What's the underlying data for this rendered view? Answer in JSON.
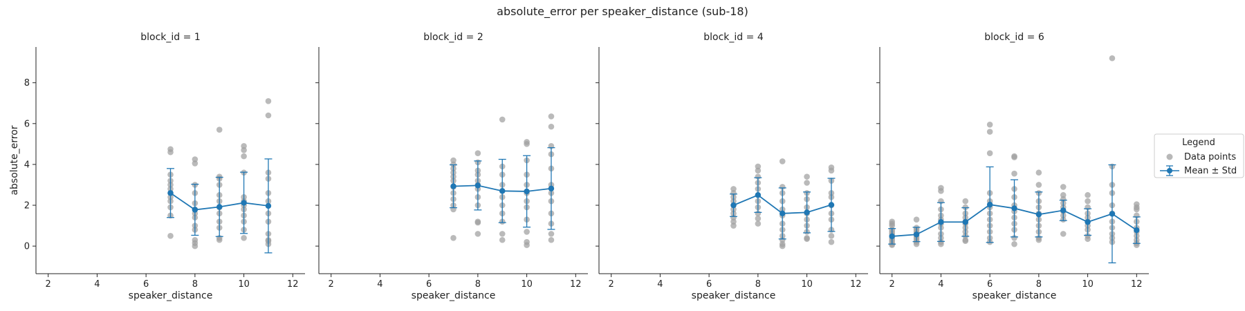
{
  "chart_data": {
    "type": "scatter",
    "title": "absolute_error per speaker_distance (sub-18)",
    "xlabel": "speaker_distance",
    "ylabel": "absolute_error",
    "xlim": [
      1.5,
      12.5
    ],
    "ylim": [
      -1.35,
      9.75
    ],
    "xticks": [
      2,
      4,
      6,
      8,
      10,
      12
    ],
    "yticks": [
      0,
      2,
      4,
      6,
      8
    ],
    "colors": {
      "points": "#a0a0a0",
      "mean": "#1f77b4"
    },
    "legend": {
      "title": "Legend",
      "placement": "right",
      "entries": [
        "Data points",
        "Mean ± Std"
      ]
    },
    "panels": [
      {
        "title": "block_id = 1",
        "points": [
          [
            7,
            4.75
          ],
          [
            7,
            4.6
          ],
          [
            7,
            3.5
          ],
          [
            7,
            3.2
          ],
          [
            7,
            3.0
          ],
          [
            7,
            2.8
          ],
          [
            7,
            2.6
          ],
          [
            7,
            2.4
          ],
          [
            7,
            2.2
          ],
          [
            7,
            1.9
          ],
          [
            7,
            1.5
          ],
          [
            7,
            0.5
          ],
          [
            8,
            4.25
          ],
          [
            8,
            4.05
          ],
          [
            8,
            3.0
          ],
          [
            8,
            2.6
          ],
          [
            8,
            2.1
          ],
          [
            8,
            1.8
          ],
          [
            8,
            1.6
          ],
          [
            8,
            1.4
          ],
          [
            8,
            1.0
          ],
          [
            8,
            0.8
          ],
          [
            8,
            0.3
          ],
          [
            8,
            0.15
          ],
          [
            8,
            0.0
          ],
          [
            9,
            5.7
          ],
          [
            9,
            3.4
          ],
          [
            9,
            3.3
          ],
          [
            9,
            3.0
          ],
          [
            9,
            2.5
          ],
          [
            9,
            2.2
          ],
          [
            9,
            1.9
          ],
          [
            9,
            1.6
          ],
          [
            9,
            1.2
          ],
          [
            9,
            0.9
          ],
          [
            9,
            0.4
          ],
          [
            9,
            0.3
          ],
          [
            10,
            4.9
          ],
          [
            10,
            4.7
          ],
          [
            10,
            4.4
          ],
          [
            10,
            3.6
          ],
          [
            10,
            2.4
          ],
          [
            10,
            2.2
          ],
          [
            10,
            2.0
          ],
          [
            10,
            1.8
          ],
          [
            10,
            1.5
          ],
          [
            10,
            1.2
          ],
          [
            10,
            0.8
          ],
          [
            10,
            0.4
          ],
          [
            11,
            7.1
          ],
          [
            11,
            6.4
          ],
          [
            11,
            3.6
          ],
          [
            11,
            3.3
          ],
          [
            11,
            2.6
          ],
          [
            11,
            2.2
          ],
          [
            11,
            1.6
          ],
          [
            11,
            1.2
          ],
          [
            11,
            0.6
          ],
          [
            11,
            0.3
          ],
          [
            11,
            0.25
          ],
          [
            11,
            0.1
          ]
        ],
        "means": [
          [
            7,
            2.6
          ],
          [
            8,
            1.78
          ],
          [
            9,
            1.92
          ],
          [
            10,
            2.12
          ],
          [
            11,
            1.97
          ]
        ],
        "stds": [
          1.2,
          1.25,
          1.45,
          1.5,
          2.3
        ]
      },
      {
        "title": "block_id = 2",
        "points": [
          [
            7,
            4.2
          ],
          [
            7,
            4.0
          ],
          [
            7,
            3.8
          ],
          [
            7,
            3.6
          ],
          [
            7,
            3.4
          ],
          [
            7,
            3.2
          ],
          [
            7,
            2.9
          ],
          [
            7,
            2.6
          ],
          [
            7,
            2.3
          ],
          [
            7,
            2.0
          ],
          [
            7,
            1.8
          ],
          [
            7,
            0.4
          ],
          [
            8,
            4.55
          ],
          [
            8,
            4.1
          ],
          [
            8,
            3.7
          ],
          [
            8,
            3.5
          ],
          [
            8,
            3.2
          ],
          [
            8,
            3.0
          ],
          [
            8,
            2.8
          ],
          [
            8,
            2.4
          ],
          [
            8,
            2.0
          ],
          [
            8,
            1.2
          ],
          [
            8,
            1.15
          ],
          [
            8,
            0.6
          ],
          [
            9,
            6.2
          ],
          [
            9,
            3.9
          ],
          [
            9,
            3.5
          ],
          [
            9,
            3.0
          ],
          [
            9,
            2.7
          ],
          [
            9,
            2.4
          ],
          [
            9,
            2.0
          ],
          [
            9,
            1.6
          ],
          [
            9,
            1.2
          ],
          [
            9,
            0.6
          ],
          [
            9,
            0.3
          ],
          [
            10,
            5.1
          ],
          [
            10,
            5.0
          ],
          [
            10,
            4.2
          ],
          [
            10,
            3.5
          ],
          [
            10,
            3.0
          ],
          [
            10,
            2.6
          ],
          [
            10,
            2.2
          ],
          [
            10,
            1.9
          ],
          [
            10,
            1.3
          ],
          [
            10,
            0.7
          ],
          [
            10,
            0.2
          ],
          [
            10,
            0.05
          ],
          [
            11,
            6.35
          ],
          [
            11,
            5.85
          ],
          [
            11,
            4.9
          ],
          [
            11,
            4.5
          ],
          [
            11,
            3.8
          ],
          [
            11,
            3.0
          ],
          [
            11,
            2.6
          ],
          [
            11,
            2.2
          ],
          [
            11,
            1.6
          ],
          [
            11,
            1.1
          ],
          [
            11,
            0.6
          ],
          [
            11,
            0.3
          ]
        ],
        "means": [
          [
            7,
            2.93
          ],
          [
            8,
            2.97
          ],
          [
            9,
            2.7
          ],
          [
            10,
            2.68
          ],
          [
            11,
            2.82
          ]
        ],
        "stds": [
          1.05,
          1.2,
          1.55,
          1.75,
          2.0
        ]
      },
      {
        "title": "block_id = 4",
        "points": [
          [
            7,
            2.8
          ],
          [
            7,
            2.6
          ],
          [
            7,
            2.4
          ],
          [
            7,
            2.2
          ],
          [
            7,
            2.0
          ],
          [
            7,
            1.8
          ],
          [
            7,
            1.6
          ],
          [
            7,
            1.4
          ],
          [
            7,
            1.2
          ],
          [
            7,
            1.0
          ],
          [
            8,
            3.9
          ],
          [
            8,
            3.7
          ],
          [
            8,
            3.4
          ],
          [
            8,
            3.1
          ],
          [
            8,
            2.8
          ],
          [
            8,
            2.5
          ],
          [
            8,
            2.2
          ],
          [
            8,
            1.9
          ],
          [
            8,
            1.6
          ],
          [
            8,
            1.35
          ],
          [
            8,
            1.1
          ],
          [
            9,
            4.15
          ],
          [
            9,
            2.9
          ],
          [
            9,
            2.6
          ],
          [
            9,
            2.2
          ],
          [
            9,
            1.8
          ],
          [
            9,
            1.5
          ],
          [
            9,
            1.1
          ],
          [
            9,
            0.8
          ],
          [
            9,
            0.5
          ],
          [
            9,
            0.3
          ],
          [
            9,
            0.1
          ],
          [
            9,
            0.0
          ],
          [
            10,
            3.4
          ],
          [
            10,
            3.1
          ],
          [
            10,
            2.6
          ],
          [
            10,
            2.3
          ],
          [
            10,
            1.9
          ],
          [
            10,
            1.6
          ],
          [
            10,
            1.3
          ],
          [
            10,
            1.0
          ],
          [
            10,
            0.7
          ],
          [
            10,
            0.4
          ],
          [
            10,
            0.35
          ],
          [
            11,
            3.85
          ],
          [
            11,
            3.7
          ],
          [
            11,
            3.2
          ],
          [
            11,
            2.6
          ],
          [
            11,
            2.4
          ],
          [
            11,
            2.0
          ],
          [
            11,
            1.6
          ],
          [
            11,
            1.3
          ],
          [
            11,
            0.8
          ],
          [
            11,
            0.5
          ],
          [
            11,
            0.2
          ]
        ],
        "means": [
          [
            7,
            2.0
          ],
          [
            8,
            2.5
          ],
          [
            9,
            1.6
          ],
          [
            10,
            1.65
          ],
          [
            11,
            2.02
          ]
        ],
        "stds": [
          0.55,
          0.85,
          1.25,
          1.0,
          1.3
        ]
      },
      {
        "title": "block_id = 6",
        "points": [
          [
            2,
            1.2
          ],
          [
            2,
            1.1
          ],
          [
            2,
            1.0
          ],
          [
            2,
            0.8
          ],
          [
            2,
            0.7
          ],
          [
            2,
            0.6
          ],
          [
            2,
            0.5
          ],
          [
            2,
            0.4
          ],
          [
            2,
            0.3
          ],
          [
            2,
            0.2
          ],
          [
            2,
            0.1
          ],
          [
            2,
            0.05
          ],
          [
            3,
            1.3
          ],
          [
            3,
            0.9
          ],
          [
            3,
            0.8
          ],
          [
            3,
            0.7
          ],
          [
            3,
            0.6
          ],
          [
            3,
            0.5
          ],
          [
            3,
            0.4
          ],
          [
            3,
            0.3
          ],
          [
            3,
            0.2
          ],
          [
            3,
            0.1
          ],
          [
            4,
            2.85
          ],
          [
            4,
            2.7
          ],
          [
            4,
            2.2
          ],
          [
            4,
            1.8
          ],
          [
            4,
            1.5
          ],
          [
            4,
            1.3
          ],
          [
            4,
            1.1
          ],
          [
            4,
            0.9
          ],
          [
            4,
            0.6
          ],
          [
            4,
            0.4
          ],
          [
            4,
            0.2
          ],
          [
            4,
            0.1
          ],
          [
            5,
            2.2
          ],
          [
            5,
            1.9
          ],
          [
            5,
            1.6
          ],
          [
            5,
            1.4
          ],
          [
            5,
            1.2
          ],
          [
            5,
            1.1
          ],
          [
            5,
            0.9
          ],
          [
            5,
            0.7
          ],
          [
            5,
            0.5
          ],
          [
            5,
            0.3
          ],
          [
            5,
            0.25
          ],
          [
            6,
            5.95
          ],
          [
            6,
            5.6
          ],
          [
            6,
            4.55
          ],
          [
            6,
            2.6
          ],
          [
            6,
            2.2
          ],
          [
            6,
            1.9
          ],
          [
            6,
            1.6
          ],
          [
            6,
            1.3
          ],
          [
            6,
            1.0
          ],
          [
            6,
            0.7
          ],
          [
            6,
            0.4
          ],
          [
            6,
            0.2
          ],
          [
            7,
            4.4
          ],
          [
            7,
            4.35
          ],
          [
            7,
            3.55
          ],
          [
            7,
            2.8
          ],
          [
            7,
            2.4
          ],
          [
            7,
            2.0
          ],
          [
            7,
            1.7
          ],
          [
            7,
            1.4
          ],
          [
            7,
            1.1
          ],
          [
            7,
            0.8
          ],
          [
            7,
            0.4
          ],
          [
            7,
            0.1
          ],
          [
            8,
            3.6
          ],
          [
            8,
            3.0
          ],
          [
            8,
            2.6
          ],
          [
            8,
            2.2
          ],
          [
            8,
            1.9
          ],
          [
            8,
            1.6
          ],
          [
            8,
            1.3
          ],
          [
            8,
            1.0
          ],
          [
            8,
            0.7
          ],
          [
            8,
            0.4
          ],
          [
            8,
            0.3
          ],
          [
            9,
            2.9
          ],
          [
            9,
            2.5
          ],
          [
            9,
            2.3
          ],
          [
            9,
            2.1
          ],
          [
            9,
            1.9
          ],
          [
            9,
            1.7
          ],
          [
            9,
            1.5
          ],
          [
            9,
            1.3
          ],
          [
            9,
            0.6
          ],
          [
            10,
            2.5
          ],
          [
            10,
            2.2
          ],
          [
            10,
            1.9
          ],
          [
            10,
            1.6
          ],
          [
            10,
            1.4
          ],
          [
            10,
            1.2
          ],
          [
            10,
            1.0
          ],
          [
            10,
            0.8
          ],
          [
            10,
            0.5
          ],
          [
            10,
            0.35
          ],
          [
            11,
            9.2
          ],
          [
            11,
            3.9
          ],
          [
            11,
            3.0
          ],
          [
            11,
            2.6
          ],
          [
            11,
            2.0
          ],
          [
            11,
            1.6
          ],
          [
            11,
            1.2
          ],
          [
            11,
            0.9
          ],
          [
            11,
            0.6
          ],
          [
            11,
            0.4
          ],
          [
            11,
            0.2
          ],
          [
            12,
            2.05
          ],
          [
            12,
            1.9
          ],
          [
            12,
            1.8
          ],
          [
            12,
            1.5
          ],
          [
            12,
            1.2
          ],
          [
            12,
            0.9
          ],
          [
            12,
            0.7
          ],
          [
            12,
            0.5
          ],
          [
            12,
            0.3
          ],
          [
            12,
            0.15
          ],
          [
            12,
            0.05
          ]
        ],
        "means": [
          [
            2,
            0.48
          ],
          [
            3,
            0.57
          ],
          [
            4,
            1.18
          ],
          [
            5,
            1.18
          ],
          [
            6,
            2.03
          ],
          [
            7,
            1.85
          ],
          [
            8,
            1.55
          ],
          [
            9,
            1.75
          ],
          [
            10,
            1.18
          ],
          [
            11,
            1.58
          ],
          [
            12,
            0.78
          ]
        ],
        "stds": [
          0.38,
          0.35,
          0.95,
          0.7,
          1.85,
          1.4,
          1.1,
          0.5,
          0.65,
          2.4,
          0.65
        ]
      }
    ]
  }
}
